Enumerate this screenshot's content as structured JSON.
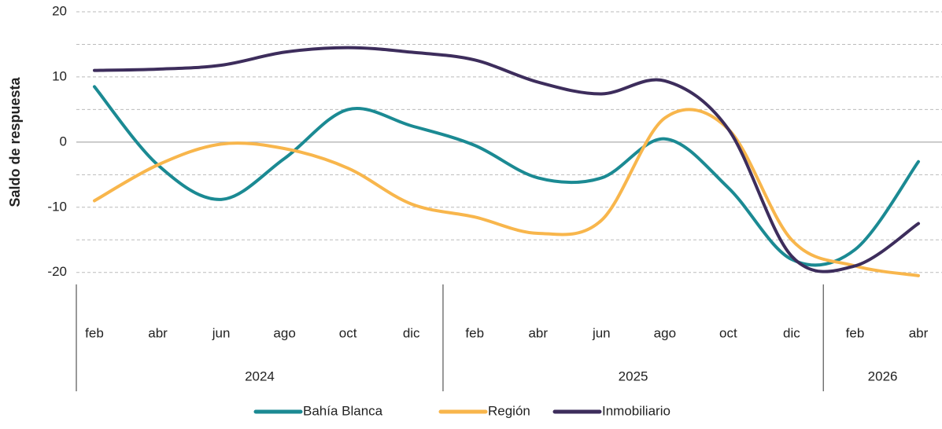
{
  "chart_data": {
    "type": "line",
    "y_label": "Saldo de respuesta",
    "categories": [
      "feb",
      "abr",
      "jun",
      "ago",
      "oct",
      "dic",
      "feb",
      "abr",
      "jun",
      "ago",
      "oct",
      "dic",
      "feb",
      "abr"
    ],
    "year_groups": [
      {
        "label": "2024",
        "count": 6
      },
      {
        "label": "2025",
        "count": 6
      },
      {
        "label": "2026",
        "count": 2
      }
    ],
    "series": [
      {
        "name": "Bahía Blanca",
        "color": "#1b8a93",
        "values": [
          8.5,
          -3.5,
          -8.8,
          -2.5,
          5,
          2.5,
          -0.5,
          -5.5,
          -5.5,
          0.5,
          -7,
          -18,
          -16.5,
          -3
        ]
      },
      {
        "name": "Región",
        "color": "#f8b64c",
        "values": [
          -9,
          -3.5,
          -0.3,
          -1,
          -4,
          -9.5,
          -11.5,
          -14,
          -12,
          3.7,
          2,
          -15,
          -19,
          -20.5
        ]
      },
      {
        "name": "Inmobiliario",
        "color": "#3d2d5c",
        "values": [
          11,
          11.2,
          11.8,
          13.8,
          14.5,
          13.8,
          12.6,
          9.2,
          7.4,
          9.4,
          2,
          -17.5,
          -19,
          -12.5
        ]
      }
    ],
    "ylim": [
      -21,
      20
    ],
    "yticks": [
      -20,
      -10,
      0,
      10,
      20
    ],
    "minor_yticks": [
      -15,
      -5,
      5,
      15
    ],
    "grid": true,
    "legend": "bottom"
  }
}
